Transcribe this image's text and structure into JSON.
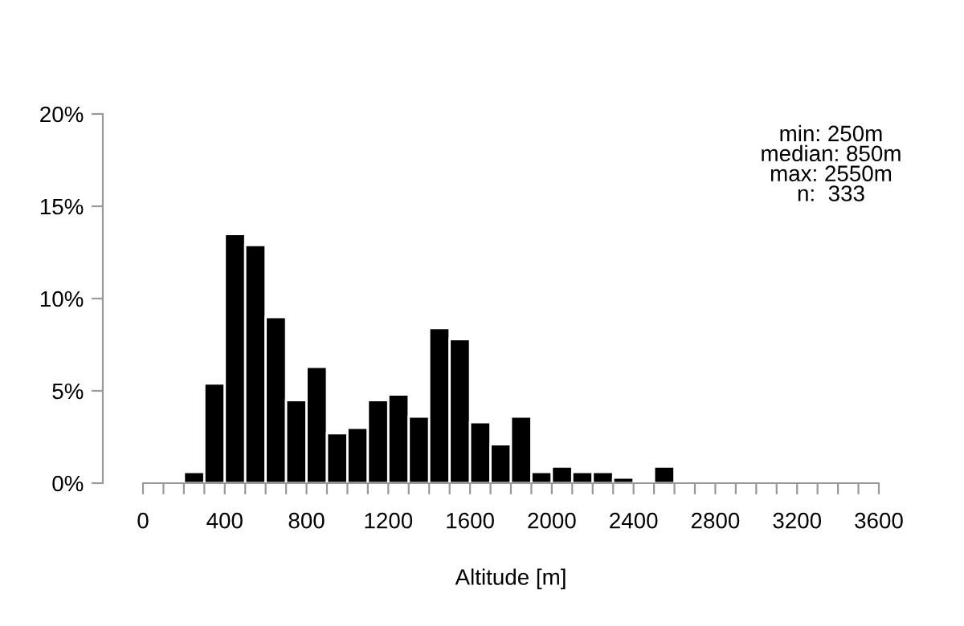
{
  "chart_data": {
    "type": "histogram",
    "xlabel": "Altitude [m]",
    "bins": [
      200,
      300,
      400,
      500,
      600,
      700,
      800,
      900,
      1000,
      1100,
      1200,
      1300,
      1400,
      1500,
      1600,
      1700,
      1800,
      1900,
      2000,
      2100,
      2200,
      2300,
      2400,
      2500,
      2600
    ],
    "values": [
      0.6,
      5.4,
      13.5,
      12.9,
      9.0,
      4.5,
      6.3,
      2.7,
      3.0,
      4.5,
      4.8,
      3.6,
      8.4,
      7.8,
      3.3,
      2.1,
      3.6,
      0.6,
      0.9,
      0.6,
      0.6,
      0.3,
      0,
      0.9
    ],
    "color": "#000000",
    "xlim": [
      0,
      3600
    ],
    "xticks": [
      0,
      {
        "value": 100,
        "label": null
      },
      {
        "value": 200,
        "label": null
      },
      {
        "value": 300,
        "label": null
      },
      400,
      {
        "value": 500,
        "label": null
      },
      {
        "value": 600,
        "label": null
      },
      {
        "value": 700,
        "label": null
      },
      800,
      {
        "value": 900,
        "label": null
      },
      {
        "value": 1000,
        "label": null
      },
      {
        "value": 1100,
        "label": null
      },
      1200,
      {
        "value": 1300,
        "label": null
      },
      {
        "value": 1400,
        "label": null
      },
      {
        "value": 1500,
        "label": null
      },
      1600,
      {
        "value": 1700,
        "label": null
      },
      {
        "value": 1800,
        "label": null
      },
      {
        "value": 1900,
        "label": null
      },
      2000,
      {
        "value": 2100,
        "label": null
      },
      {
        "value": 2200,
        "label": null
      },
      {
        "value": 2300,
        "label": null
      },
      2400,
      {
        "value": 2500,
        "label": null
      },
      {
        "value": 2600,
        "label": null
      },
      {
        "value": 2700,
        "label": null
      },
      2800,
      {
        "value": 2900,
        "label": null
      },
      {
        "value": 3000,
        "label": null
      },
      {
        "value": 3100,
        "label": null
      },
      3200,
      {
        "value": 3300,
        "label": null
      },
      {
        "value": 3400,
        "label": null
      },
      {
        "value": 3500,
        "label": null
      },
      3600
    ],
    "ylim": [
      0,
      20
    ],
    "yticks": [
      {
        "value": 0,
        "label": "0%"
      },
      {
        "value": 5,
        "label": "5%"
      },
      {
        "value": 10,
        "label": "10%"
      },
      {
        "value": 15,
        "label": "15%"
      },
      {
        "value": 20,
        "label": "20%"
      }
    ],
    "grid": false,
    "annotations": [
      "min: 250m\nmedian: 850m\nmax: 2550m\nn:  333"
    ]
  }
}
